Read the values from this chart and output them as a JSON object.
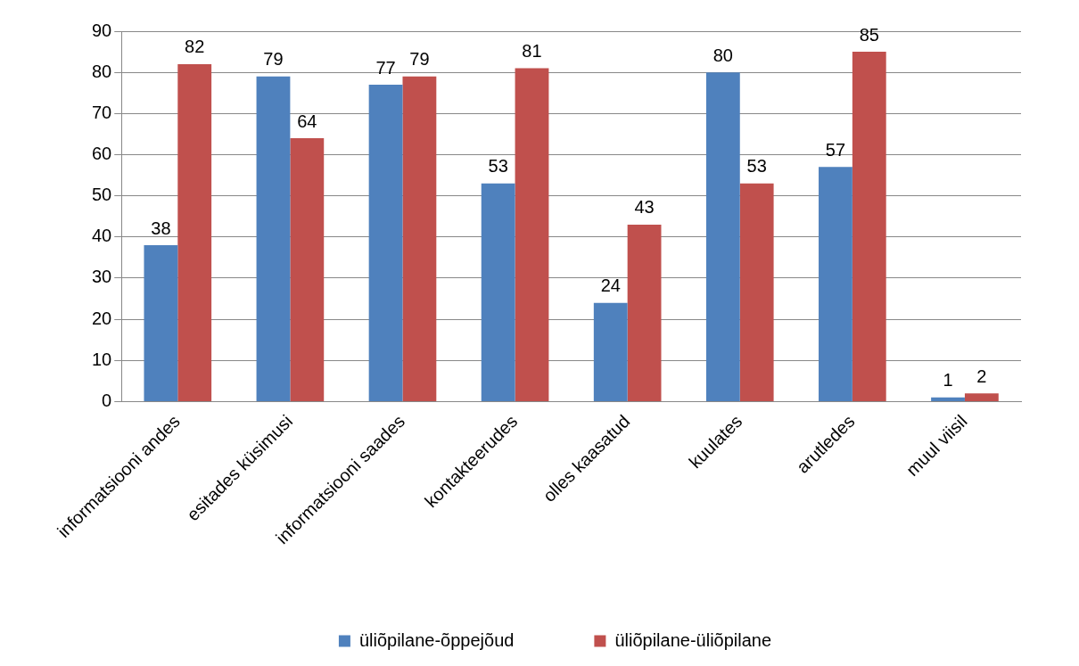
{
  "chart_data": {
    "type": "bar",
    "categories": [
      "informatsiooni andes",
      "esitades küsimusi",
      "informatsiooni saades",
      "kontakteerudes",
      "olles kaasatud",
      "kuulates",
      "arutledes",
      "muul viisil"
    ],
    "series": [
      {
        "name": "üliõpilane-õppejõud",
        "color": "#4f81bd",
        "values": [
          38,
          79,
          77,
          53,
          24,
          80,
          57,
          1
        ]
      },
      {
        "name": "üliõpilane-üliõpilane",
        "color": "#c0504d",
        "values": [
          82,
          64,
          79,
          81,
          43,
          53,
          85,
          2
        ]
      }
    ],
    "ylim": [
      0,
      90
    ],
    "yticks": [
      0,
      10,
      20,
      30,
      40,
      50,
      60,
      70,
      80,
      90
    ],
    "grid": "y",
    "legend": "bottom",
    "data_labels": true
  }
}
